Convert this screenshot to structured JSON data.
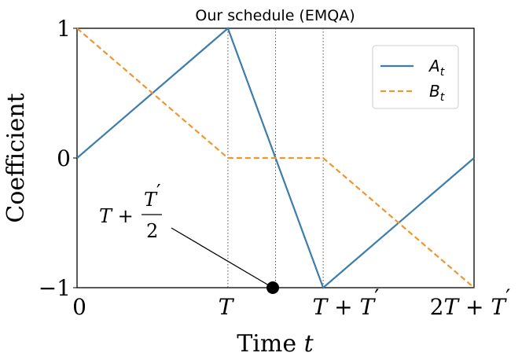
{
  "chart_data": {
    "type": "line",
    "title": "Our schedule (EMQA)",
    "xlabel": "Time t",
    "ylabel": "Coefficient",
    "xlim": [
      0,
      2.5
    ],
    "ylim": [
      -1,
      1
    ],
    "yticks": [
      {
        "value": 1,
        "label": "1"
      },
      {
        "value": 0,
        "label": "0"
      },
      {
        "value": -1,
        "label": "−1"
      }
    ],
    "xticks": [
      {
        "value": 0,
        "label": "0"
      },
      {
        "value": 0.95,
        "label": "T"
      },
      {
        "value": 1.55,
        "label": "T + T′"
      },
      {
        "value": 2.5,
        "label": "2T + T′"
      }
    ],
    "vlines": [
      0.95,
      1.25,
      1.55
    ],
    "series": [
      {
        "name": "A_t",
        "color": "#3b7dab",
        "style": "solid",
        "x": [
          0,
          0.95,
          1.55,
          2.5
        ],
        "y": [
          0,
          1,
          -1,
          0
        ]
      },
      {
        "name": "B_t",
        "color": "#f0962e",
        "style": "dashed",
        "x": [
          0,
          0.95,
          1.55,
          2.5
        ],
        "y": [
          1,
          0,
          0,
          -1
        ]
      }
    ],
    "annotation": {
      "text": "T + T′/2",
      "x": 1.25,
      "y": -1
    },
    "legend": "top-right"
  }
}
